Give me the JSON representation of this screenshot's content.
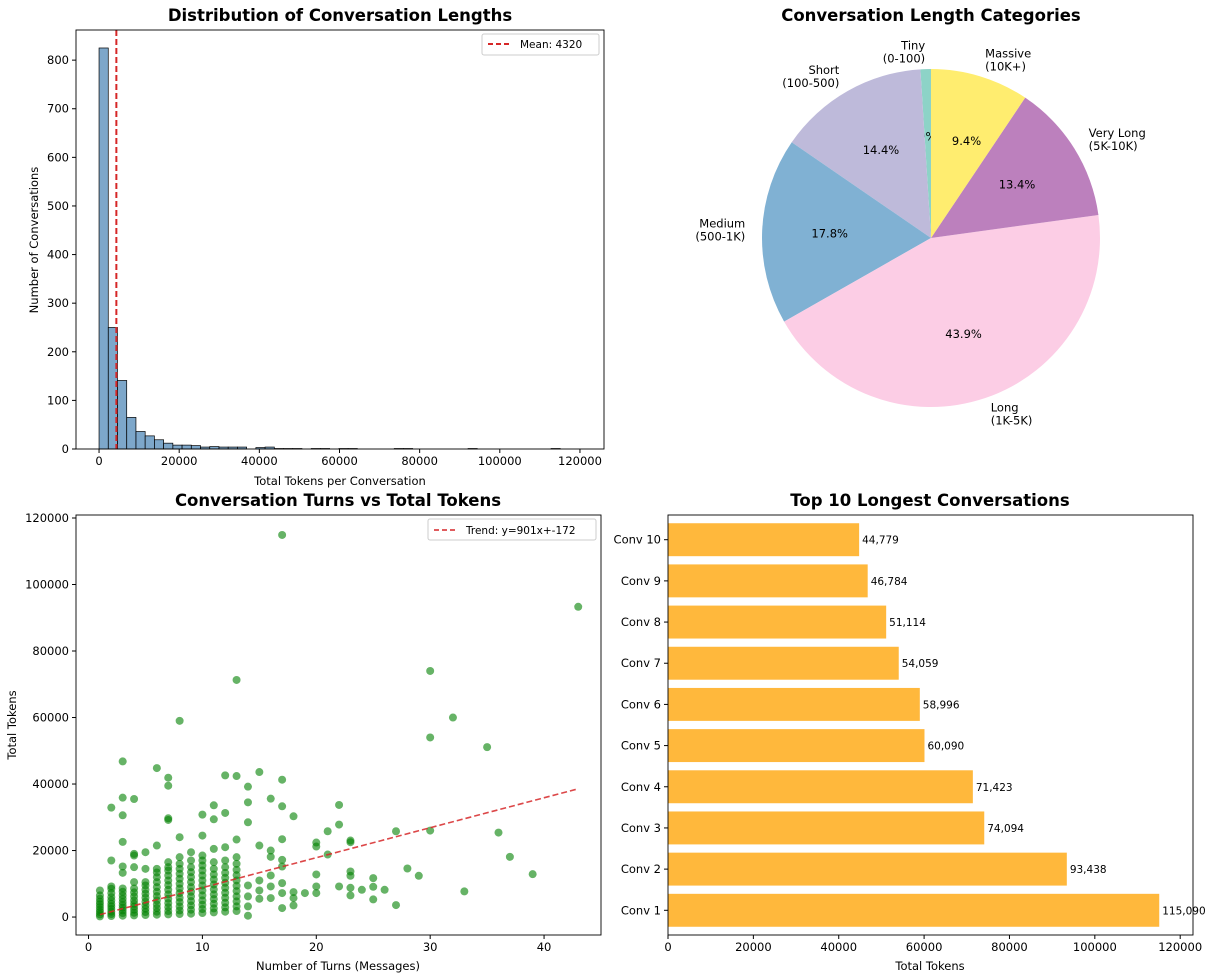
{
  "chart_data": [
    {
      "type": "bar",
      "subtype": "histogram",
      "title": "Distribution of Conversation Lengths",
      "xlabel": "Total Tokens per Conversation",
      "ylabel": "Number of Conversations",
      "xlim": [
        -5750,
        126000
      ],
      "ylim": [
        0,
        862
      ],
      "xticks": [
        0,
        20000,
        40000,
        60000,
        80000,
        100000,
        120000
      ],
      "yticks": [
        0,
        100,
        200,
        300,
        400,
        500,
        600,
        700,
        800
      ],
      "bin_start": 0,
      "bin_end": 115090,
      "counts": [
        825,
        250,
        141,
        65,
        36,
        27,
        19,
        12,
        8,
        8,
        7,
        4,
        5,
        4,
        4,
        4,
        0,
        3,
        4,
        1,
        1,
        1,
        0,
        1,
        1,
        0,
        1,
        1,
        0,
        0,
        0,
        0,
        1,
        1,
        0,
        0,
        0,
        0,
        0,
        0,
        1,
        0,
        0,
        0,
        0,
        0,
        0,
        0,
        0,
        1
      ],
      "bar_color": "#4682b4",
      "mean_line": {
        "value": 4320,
        "label": "Mean: 4320",
        "color": "#d62728"
      },
      "legend": "top-right",
      "grid": false
    },
    {
      "type": "pie",
      "title": "Conversation Length Categories",
      "start_angle": 90,
      "slices": [
        {
          "label": "Tiny\n(0-100)",
          "pct": "1.0%",
          "value": 1.0,
          "color": "#8dd3c7"
        },
        {
          "label": "Short\n(100-500)",
          "pct": "14.4%",
          "value": 14.4,
          "color": "#bebada"
        },
        {
          "label": "Medium\n(500-1K)",
          "pct": "17.8%",
          "value": 17.8,
          "color": "#80b1d3"
        },
        {
          "label": "Long\n(1K-5K)",
          "pct": "43.9%",
          "value": 43.9,
          "color": "#fccde5"
        },
        {
          "label": "Very Long\n(5K-10K)",
          "pct": "13.4%",
          "value": 13.4,
          "color": "#bc80bd"
        },
        {
          "label": "Massive\n(10K+)",
          "pct": "9.4%",
          "value": 9.4,
          "color": "#ffed6f"
        }
      ]
    },
    {
      "type": "scatter",
      "title": "Conversation Turns vs Total Tokens",
      "xlabel": "Number of Turns (Messages)",
      "ylabel": "Total Tokens",
      "xlim": [
        -1.1,
        45
      ],
      "ylim": [
        -5400,
        120900
      ],
      "xticks": [
        0,
        10,
        20,
        30,
        40
      ],
      "yticks": [
        0,
        20000,
        40000,
        60000,
        80000,
        100000,
        120000
      ],
      "point_color": "#008000",
      "trend": {
        "slope": 901,
        "intercept": -172,
        "x_range": [
          1,
          43
        ],
        "label": "Trend: y=901x+-172",
        "color": "#d62728"
      },
      "legend": "top-right",
      "grid": false,
      "points_by_turn": [
        {
          "turns": 1,
          "tokens": [
            200,
            800,
            1500,
            2200,
            3000,
            3800,
            4600,
            5500,
            6500,
            8000
          ]
        },
        {
          "turns": 2,
          "tokens": [
            300,
            900,
            1600,
            2400,
            3200,
            4000,
            5000,
            6000,
            7200,
            8500,
            9200,
            17000,
            32900
          ]
        },
        {
          "turns": 3,
          "tokens": [
            400,
            1200,
            2000,
            2800,
            3600,
            4500,
            5500,
            6500,
            7600,
            8600,
            13300,
            15200,
            22600,
            30600,
            35900,
            46800
          ]
        },
        {
          "turns": 4,
          "tokens": [
            500,
            1300,
            2200,
            3100,
            4000,
            5000,
            6200,
            7400,
            8600,
            10500,
            15000,
            18500,
            19000,
            35500
          ]
        },
        {
          "turns": 5,
          "tokens": [
            600,
            1500,
            2500,
            3500,
            4600,
            5800,
            7000,
            8200,
            9500,
            10500,
            14500,
            19500
          ]
        },
        {
          "turns": 6,
          "tokens": [
            700,
            1600,
            2700,
            3800,
            5000,
            6300,
            7600,
            9000,
            10500,
            12000,
            13400,
            14500,
            21500,
            44800
          ]
        },
        {
          "turns": 7,
          "tokens": [
            800,
            1800,
            3000,
            4200,
            5500,
            6800,
            8200,
            9600,
            11000,
            12500,
            14000,
            15000,
            16500,
            29200,
            29700,
            39500,
            41900
          ]
        },
        {
          "turns": 8,
          "tokens": [
            900,
            2000,
            3200,
            4500,
            5800,
            7200,
            8600,
            10000,
            11500,
            13000,
            14500,
            16000,
            18000,
            24000,
            59000
          ]
        },
        {
          "turns": 9,
          "tokens": [
            1000,
            2200,
            3500,
            4800,
            6200,
            7600,
            9000,
            10500,
            12000,
            13500,
            15000,
            17000,
            19500
          ]
        },
        {
          "turns": 10,
          "tokens": [
            1200,
            2400,
            3700,
            5000,
            6500,
            8000,
            9500,
            11000,
            12500,
            14000,
            15500,
            17000,
            18500,
            24500,
            30800
          ]
        },
        {
          "turns": 11,
          "tokens": [
            1400,
            2600,
            4000,
            5400,
            6800,
            8300,
            9800,
            11300,
            12800,
            14500,
            16500,
            20500,
            29400,
            33600
          ]
        },
        {
          "turns": 12,
          "tokens": [
            1600,
            2900,
            4300,
            5800,
            7300,
            8800,
            10300,
            11800,
            13300,
            15000,
            17000,
            21000,
            31300,
            42600
          ]
        },
        {
          "turns": 13,
          "tokens": [
            1800,
            3200,
            4700,
            6200,
            7800,
            9400,
            11000,
            12600,
            14200,
            16000,
            18000,
            23300,
            42400,
            71300
          ]
        },
        {
          "turns": 14,
          "tokens": [
            400,
            3200,
            6200,
            9500,
            28500,
            34500,
            39200
          ]
        },
        {
          "turns": 15,
          "tokens": [
            5500,
            8000,
            11000,
            21500,
            43600
          ]
        },
        {
          "turns": 16,
          "tokens": [
            5700,
            9200,
            12500,
            18100,
            20000,
            35600
          ]
        },
        {
          "turns": 17,
          "tokens": [
            2700,
            7200,
            10200,
            15200,
            17200,
            23400,
            33300,
            41300,
            114900
          ]
        },
        {
          "turns": 18,
          "tokens": [
            3500,
            5700,
            7500,
            30300
          ]
        },
        {
          "turns": 19,
          "tokens": [
            7200
          ]
        },
        {
          "turns": 20,
          "tokens": [
            7200,
            9200,
            12800,
            21200,
            22400
          ]
        },
        {
          "turns": 21,
          "tokens": [
            18800,
            25800
          ]
        },
        {
          "turns": 22,
          "tokens": [
            9200,
            27800,
            33700
          ]
        },
        {
          "turns": 23,
          "tokens": [
            6500,
            8800,
            12400,
            13700,
            22500,
            23000
          ]
        },
        {
          "turns": 24,
          "tokens": [
            8200
          ]
        },
        {
          "turns": 25,
          "tokens": [
            5300,
            9100,
            11700
          ]
        },
        {
          "turns": 26,
          "tokens": [
            8200
          ]
        },
        {
          "turns": 27,
          "tokens": [
            3600,
            25800
          ]
        },
        {
          "turns": 28,
          "tokens": [
            14600
          ]
        },
        {
          "turns": 29,
          "tokens": [
            12400
          ]
        },
        {
          "turns": 30,
          "tokens": [
            26000,
            54000,
            74000
          ]
        },
        {
          "turns": 32,
          "tokens": [
            60000
          ]
        },
        {
          "turns": 33,
          "tokens": [
            7700
          ]
        },
        {
          "turns": 35,
          "tokens": [
            51100
          ]
        },
        {
          "turns": 36,
          "tokens": [
            25400
          ]
        },
        {
          "turns": 37,
          "tokens": [
            18100
          ]
        },
        {
          "turns": 39,
          "tokens": [
            12900
          ]
        },
        {
          "turns": 43,
          "tokens": [
            93300
          ]
        }
      ]
    },
    {
      "type": "bar",
      "orientation": "horizontal",
      "title": "Top 10 Longest Conversations",
      "xlabel": "Total Tokens",
      "ylabel": "",
      "xlim": [
        0,
        123000
      ],
      "xticks": [
        0,
        20000,
        40000,
        60000,
        80000,
        100000,
        120000
      ],
      "bar_color": "#ffb432",
      "categories": [
        "Conv 1",
        "Conv 2",
        "Conv 3",
        "Conv 4",
        "Conv 5",
        "Conv 6",
        "Conv 7",
        "Conv 8",
        "Conv 9",
        "Conv 10"
      ],
      "values": [
        115090,
        93438,
        74094,
        71423,
        60090,
        58996,
        54059,
        51114,
        46784,
        44779
      ],
      "value_labels": [
        "115,090",
        "93,438",
        "74,094",
        "71,423",
        "60,090",
        "58,996",
        "54,059",
        "51,114",
        "46,784",
        "44,779"
      ]
    }
  ]
}
